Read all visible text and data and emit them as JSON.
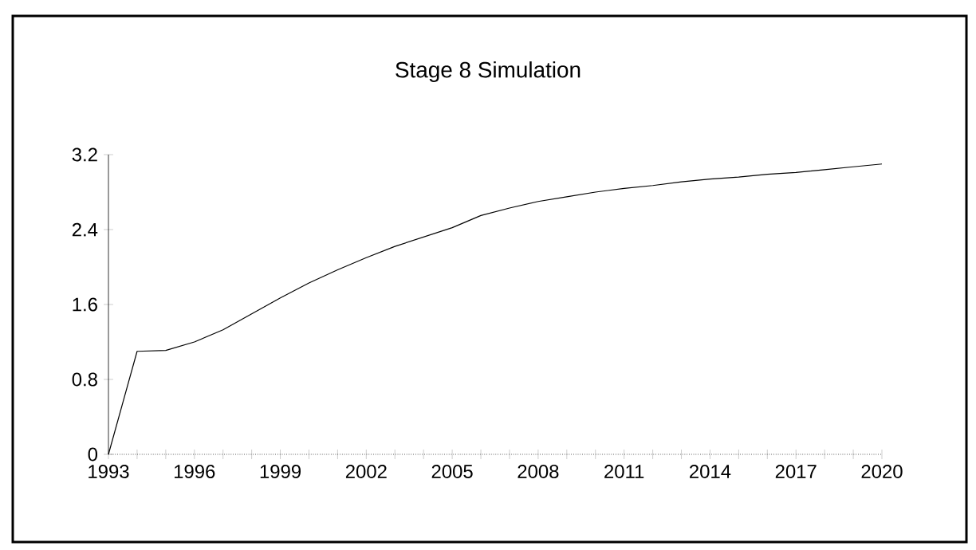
{
  "chart_data": {
    "type": "line",
    "title": "Stage 8 Simulation",
    "x": [
      1993,
      1994,
      1995,
      1996,
      1997,
      1998,
      1999,
      2000,
      2001,
      2002,
      2003,
      2004,
      2005,
      2006,
      2007,
      2008,
      2009,
      2010,
      2011,
      2012,
      2013,
      2014,
      2015,
      2016,
      2017,
      2018,
      2019,
      2020
    ],
    "series": [
      {
        "color": "#000000",
        "values": [
          0,
          1.1,
          1.11,
          1.2,
          1.33,
          1.5,
          1.67,
          1.83,
          1.97,
          2.1,
          2.22,
          2.32,
          2.42,
          2.55,
          2.63,
          2.7,
          2.75,
          2.8,
          2.84,
          2.87,
          2.91,
          2.94,
          2.96,
          2.99,
          3.01,
          3.04,
          3.07,
          3.1
        ]
      }
    ],
    "xlim": [
      1993,
      2020
    ],
    "xticks": [
      1993,
      {
        "value": 1994,
        "label": null
      },
      {
        "value": 1995,
        "label": null
      },
      1996,
      {
        "value": 1997,
        "label": null
      },
      {
        "value": 1998,
        "label": null
      },
      1999,
      {
        "value": 2000,
        "label": null
      },
      {
        "value": 2001,
        "label": null
      },
      2002,
      {
        "value": 2003,
        "label": null
      },
      {
        "value": 2004,
        "label": null
      },
      2005,
      {
        "value": 2006,
        "label": null
      },
      {
        "value": 2007,
        "label": null
      },
      2008,
      {
        "value": 2009,
        "label": null
      },
      {
        "value": 2010,
        "label": null
      },
      2011,
      {
        "value": 2012,
        "label": null
      },
      {
        "value": 2013,
        "label": null
      },
      2014,
      {
        "value": 2015,
        "label": null
      },
      {
        "value": 2016,
        "label": null
      },
      2017,
      {
        "value": 2018,
        "label": null
      },
      {
        "value": 2019,
        "label": null
      },
      2020
    ],
    "ylim": [
      0,
      3.2
    ],
    "yticks": [
      0,
      0.8,
      1.6,
      2.4,
      3.2
    ],
    "grid": false,
    "legend": false,
    "marker": "none",
    "line_style": "solid"
  }
}
